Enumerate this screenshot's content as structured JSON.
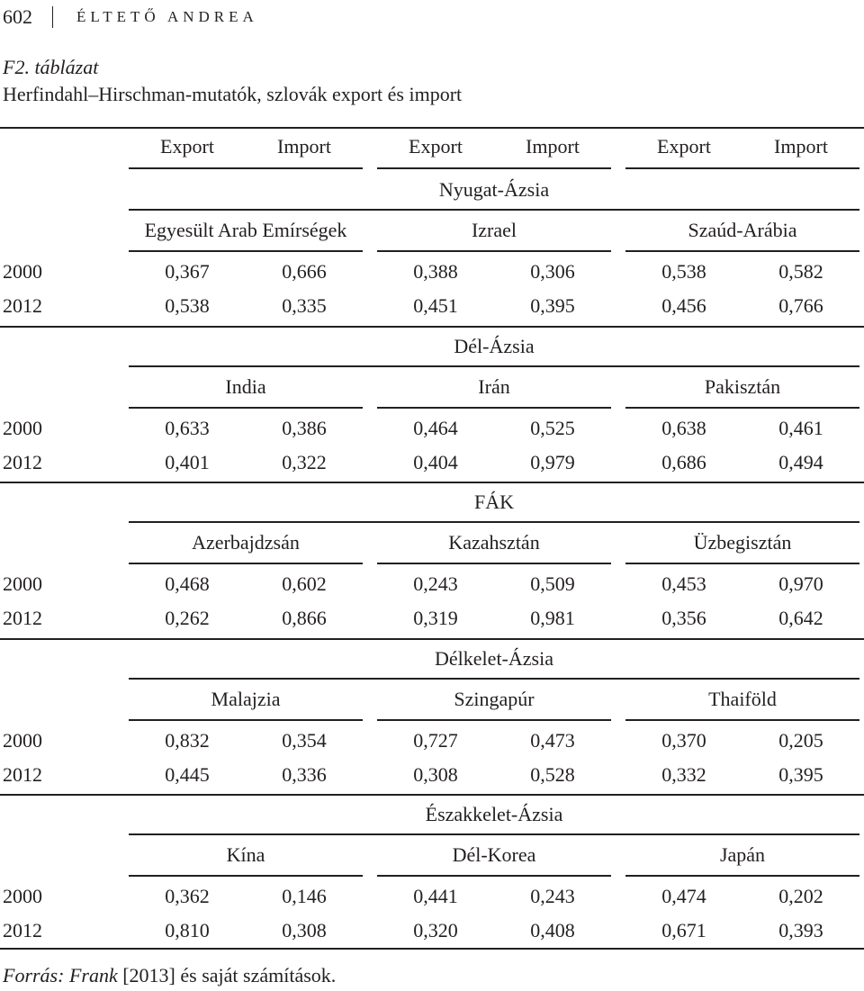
{
  "header": {
    "page_number": "602",
    "running_head": "Éltető Andrea"
  },
  "caption": {
    "label": "F2. táblázat",
    "title": "Herfindahl–Hirschman-mutatók, szlovák export és import"
  },
  "columns": [
    "Export",
    "Import",
    "Export",
    "Import",
    "Export",
    "Import"
  ],
  "sections": [
    {
      "region": "Nyugat-Ázsia",
      "countries": [
        "Egyesült Arab Emírségek",
        "Izrael",
        "Szaúd-Arábia"
      ],
      "rows": [
        {
          "year": "2000",
          "values": [
            "0,367",
            "0,666",
            "0,388",
            "0,306",
            "0,538",
            "0,582"
          ]
        },
        {
          "year": "2012",
          "values": [
            "0,538",
            "0,335",
            "0,451",
            "0,395",
            "0,456",
            "0,766"
          ]
        }
      ]
    },
    {
      "region": "Dél-Ázsia",
      "countries": [
        "India",
        "Irán",
        "Pakisztán"
      ],
      "rows": [
        {
          "year": "2000",
          "values": [
            "0,633",
            "0,386",
            "0,464",
            "0,525",
            "0,638",
            "0,461"
          ]
        },
        {
          "year": "2012",
          "values": [
            "0,401",
            "0,322",
            "0,404",
            "0,979",
            "0,686",
            "0,494"
          ]
        }
      ]
    },
    {
      "region": "FÁK",
      "countries": [
        "Azerbajdzsán",
        "Kazahsztán",
        "Üzbegisztán"
      ],
      "rows": [
        {
          "year": "2000",
          "values": [
            "0,468",
            "0,602",
            "0,243",
            "0,509",
            "0,453",
            "0,970"
          ]
        },
        {
          "year": "2012",
          "values": [
            "0,262",
            "0,866",
            "0,319",
            "0,981",
            "0,356",
            "0,642"
          ]
        }
      ]
    },
    {
      "region": "Délkelet-Ázsia",
      "countries": [
        "Malajzia",
        "Szingapúr",
        "Thaiföld"
      ],
      "rows": [
        {
          "year": "2000",
          "values": [
            "0,832",
            "0,354",
            "0,727",
            "0,473",
            "0,370",
            "0,205"
          ]
        },
        {
          "year": "2012",
          "values": [
            "0,445",
            "0,336",
            "0,308",
            "0,528",
            "0,332",
            "0,395"
          ]
        }
      ]
    },
    {
      "region": "Északkelet-Ázsia",
      "countries": [
        "Kína",
        "Dél-Korea",
        "Japán"
      ],
      "rows": [
        {
          "year": "2000",
          "values": [
            "0,362",
            "0,146",
            "0,441",
            "0,243",
            "0,474",
            "0,202"
          ]
        },
        {
          "year": "2012",
          "values": [
            "0,810",
            "0,308",
            "0,320",
            "0,408",
            "0,671",
            "0,393"
          ]
        }
      ]
    }
  ],
  "source": {
    "label": "Forrás:",
    "author": "Frank",
    "rest": "[2013] és saját számítások."
  }
}
